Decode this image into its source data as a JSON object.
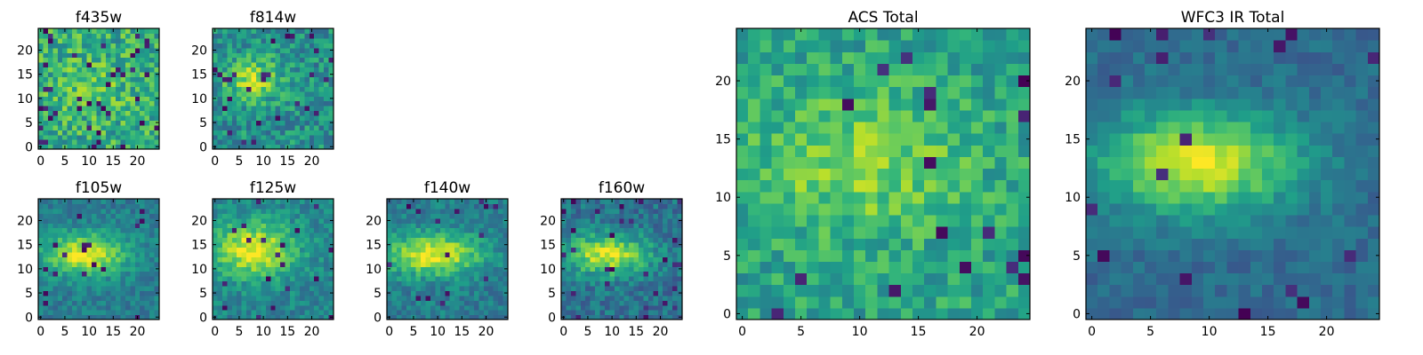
{
  "chart_data": [
    {
      "type": "heatmap",
      "title": "f435w",
      "shape": [
        25,
        25
      ],
      "xticks": [
        0,
        5,
        10,
        15,
        20
      ],
      "yticks": [
        0,
        5,
        10,
        15,
        20
      ],
      "xlim": [
        -0.5,
        24.5
      ],
      "ylim": [
        -0.5,
        24.5
      ],
      "colormap": "viridis",
      "seed": 11,
      "pattern": {
        "noise": 0.42,
        "blob_amp": 0.1,
        "blob_center": [
          11,
          13
        ],
        "blob_sigma": [
          5,
          4
        ],
        "base": 0.62,
        "dark_rate": 0.06
      }
    },
    {
      "type": "heatmap",
      "title": "f814w",
      "shape": [
        25,
        25
      ],
      "xticks": [
        0,
        5,
        10,
        15,
        20
      ],
      "yticks": [
        0,
        5,
        10,
        15,
        20
      ],
      "xlim": [
        -0.5,
        24.5
      ],
      "ylim": [
        -0.5,
        24.5
      ],
      "colormap": "viridis",
      "seed": 23,
      "pattern": {
        "noise": 0.36,
        "blob_amp": 0.4,
        "blob_center": [
          8,
          14
        ],
        "blob_sigma": [
          4,
          3
        ],
        "base": 0.5,
        "dark_rate": 0.04
      }
    },
    {
      "type": "heatmap",
      "title": "f105w",
      "shape": [
        25,
        25
      ],
      "xticks": [
        0,
        5,
        10,
        15,
        20
      ],
      "yticks": [
        0,
        5,
        10,
        15,
        20
      ],
      "xlim": [
        -0.5,
        24.5
      ],
      "ylim": [
        -0.5,
        24.5
      ],
      "colormap": "viridis",
      "seed": 37,
      "pattern": {
        "noise": 0.22,
        "blob_amp": 0.55,
        "blob_center": [
          9,
          13
        ],
        "blob_sigma": [
          6,
          3
        ],
        "base": 0.42,
        "dark_rate": 0.03
      }
    },
    {
      "type": "heatmap",
      "title": "f125w",
      "shape": [
        25,
        25
      ],
      "xticks": [
        0,
        5,
        10,
        15,
        20
      ],
      "yticks": [
        0,
        5,
        10,
        15,
        20
      ],
      "xlim": [
        -0.5,
        24.5
      ],
      "ylim": [
        -0.5,
        24.5
      ],
      "colormap": "viridis",
      "seed": 41,
      "pattern": {
        "noise": 0.24,
        "blob_amp": 0.52,
        "blob_center": [
          8,
          14
        ],
        "blob_sigma": [
          6,
          4
        ],
        "base": 0.45,
        "dark_rate": 0.03
      }
    },
    {
      "type": "heatmap",
      "title": "f140w",
      "shape": [
        25,
        25
      ],
      "xticks": [
        0,
        5,
        10,
        15,
        20
      ],
      "yticks": [
        0,
        5,
        10,
        15,
        20
      ],
      "xlim": [
        -0.5,
        24.5
      ],
      "ylim": [
        -0.5,
        24.5
      ],
      "colormap": "viridis",
      "seed": 53,
      "pattern": {
        "noise": 0.24,
        "blob_amp": 0.55,
        "blob_center": [
          9,
          13
        ],
        "blob_sigma": [
          7,
          3
        ],
        "base": 0.42,
        "dark_rate": 0.03
      }
    },
    {
      "type": "heatmap",
      "title": "f160w",
      "shape": [
        25,
        25
      ],
      "xticks": [
        0,
        5,
        10,
        15,
        20
      ],
      "yticks": [
        0,
        5,
        10,
        15,
        20
      ],
      "xlim": [
        -0.5,
        24.5
      ],
      "ylim": [
        -0.5,
        24.5
      ],
      "colormap": "viridis",
      "seed": 67,
      "pattern": {
        "noise": 0.26,
        "blob_amp": 0.55,
        "blob_center": [
          9,
          13
        ],
        "blob_sigma": [
          6,
          3
        ],
        "base": 0.38,
        "dark_rate": 0.04
      }
    },
    {
      "type": "heatmap",
      "title": "ACS Total",
      "shape": [
        25,
        25
      ],
      "xticks": [
        0,
        5,
        10,
        15,
        20
      ],
      "yticks": [
        0,
        5,
        10,
        15,
        20
      ],
      "xlim": [
        -0.5,
        24.5
      ],
      "ylim": [
        -0.5,
        24.5
      ],
      "colormap": "viridis",
      "seed": 79,
      "pattern": {
        "noise": 0.3,
        "blob_amp": 0.25,
        "blob_center": [
          10,
          13
        ],
        "blob_sigma": [
          6,
          4
        ],
        "base": 0.58,
        "dark_rate": 0.035
      }
    },
    {
      "type": "heatmap",
      "title": "WFC3 IR Total",
      "shape": [
        25,
        25
      ],
      "xticks": [
        0,
        5,
        10,
        15,
        20
      ],
      "yticks": [
        0,
        5,
        10,
        15,
        20
      ],
      "xlim": [
        -0.5,
        24.5
      ],
      "ylim": [
        -0.5,
        24.5
      ],
      "colormap": "viridis",
      "seed": 97,
      "pattern": {
        "noise": 0.16,
        "blob_amp": 0.6,
        "blob_center": [
          9,
          13
        ],
        "blob_sigma": [
          6,
          3
        ],
        "base": 0.35,
        "dark_rate": 0.035
      }
    }
  ]
}
